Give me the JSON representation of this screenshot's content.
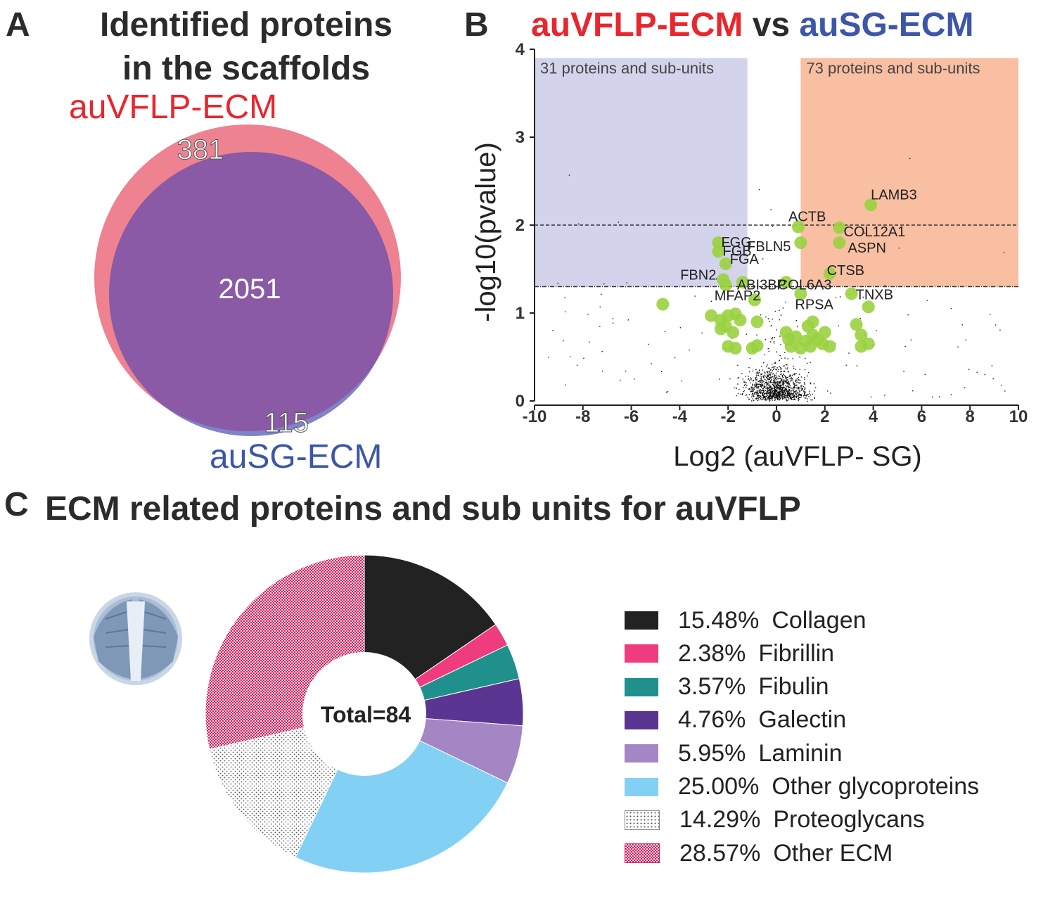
{
  "panels": {
    "a": "A",
    "b": "B",
    "c": "C"
  },
  "colors": {
    "red": "#e8262d",
    "blue": "#3c56a8",
    "venn_red": "#ef8291",
    "venn_purple": "#8a5aa6",
    "venn_blue": "#7f83c9",
    "shade_blue": "#d3d4ec",
    "shade_orange": "#f9bfa2",
    "green_dot": "#9ad13f"
  },
  "venn": {
    "title_line1": "Identified proteins",
    "title_line2": "in the scaffolds",
    "set_a_label": "auVFLP-ECM",
    "set_b_label": "auSG-ECM",
    "only_a": "381",
    "both": "2051",
    "only_b": "115"
  },
  "volcano": {
    "title_a": "auVFLP-ECM",
    "title_vs": "vs",
    "title_b": "auSG-ECM",
    "left_region_text": "31 proteins and sub-units",
    "right_region_text": "73 proteins and sub-units"
  },
  "chart_data": [
    {
      "type": "scatter",
      "title": "auVFLP-ECM vs auSG-ECM",
      "xlabel": "Log2  (auVFLP- SG)",
      "ylabel": "-log10(pvalue)",
      "xlim": [
        -10,
        10
      ],
      "ylim": [
        0,
        4
      ],
      "xticks": [
        "-10",
        "-8",
        "-6",
        "-4",
        "-2",
        "0",
        "2",
        "4",
        "6",
        "8",
        "10"
      ],
      "yticks": [
        "0",
        "1",
        "2",
        "3",
        "4"
      ],
      "thresholds": {
        "pvalue_line": 1.3,
        "upper_line": 2.0,
        "fold_low": -1.2,
        "fold_high": 1.0
      },
      "regions": [
        {
          "name": "left",
          "x": [
            -10,
            -1.2
          ],
          "y": [
            1.3,
            3.9
          ],
          "label": "31 proteins and sub-units"
        },
        {
          "name": "right",
          "x": [
            1.0,
            10
          ],
          "y": [
            1.3,
            3.9
          ],
          "label": "73 proteins and sub-units"
        }
      ],
      "labeled_points": [
        {
          "label": "LAMB3",
          "x": 3.9,
          "y": 2.23
        },
        {
          "label": "ACTB",
          "x": 0.9,
          "y": 1.98
        },
        {
          "label": "COL12A1",
          "x": 2.6,
          "y": 1.97
        },
        {
          "label": "FGG",
          "x": -2.4,
          "y": 1.8
        },
        {
          "label": "FBLN5",
          "x": 1.0,
          "y": 1.8
        },
        {
          "label": "ASPN",
          "x": 2.6,
          "y": 1.8
        },
        {
          "label": "FGB",
          "x": -2.4,
          "y": 1.7
        },
        {
          "label": "FGA",
          "x": -2.1,
          "y": 1.56
        },
        {
          "label": "CTSB",
          "x": 2.2,
          "y": 1.45
        },
        {
          "label": "FBN2",
          "x": -2.2,
          "y": 1.38
        },
        {
          "label": "ABI3BP",
          "x": -1.4,
          "y": 1.35
        },
        {
          "label": "COL6A3",
          "x": 0.4,
          "y": 1.35
        },
        {
          "label": "MFAP2",
          "x": -2.1,
          "y": 1.32
        },
        {
          "label": "RPSA",
          "x": 1.0,
          "y": 1.22
        },
        {
          "label": "TNXB",
          "x": 3.1,
          "y": 1.22
        }
      ],
      "other_ecm_points": [
        [
          -4.7,
          1.1
        ],
        [
          -2.7,
          0.97
        ],
        [
          -2.3,
          0.92
        ],
        [
          -2.0,
          0.97
        ],
        [
          -1.7,
          0.99
        ],
        [
          -2.1,
          0.85
        ],
        [
          -1.8,
          0.78
        ],
        [
          -2.3,
          0.82
        ],
        [
          -1.5,
          0.92
        ],
        [
          -0.8,
          0.9
        ],
        [
          -2.0,
          0.62
        ],
        [
          -1.7,
          0.6
        ],
        [
          -1.0,
          0.6
        ],
        [
          -0.8,
          0.63
        ],
        [
          -0.9,
          1.15
        ],
        [
          0.4,
          0.78
        ],
        [
          0.5,
          0.7
        ],
        [
          0.8,
          0.73
        ],
        [
          0.6,
          0.62
        ],
        [
          1.0,
          0.6
        ],
        [
          1.3,
          0.85
        ],
        [
          1.5,
          0.9
        ],
        [
          1.5,
          0.75
        ],
        [
          1.7,
          0.7
        ],
        [
          1.9,
          0.65
        ],
        [
          2.2,
          0.62
        ],
        [
          1.4,
          0.62
        ],
        [
          3.3,
          0.87
        ],
        [
          3.8,
          1.07
        ],
        [
          3.5,
          0.75
        ],
        [
          3.5,
          0.62
        ],
        [
          3.8,
          0.65
        ],
        [
          1.2,
          0.68
        ],
        [
          2.0,
          0.78
        ]
      ]
    },
    {
      "type": "pie",
      "title": "ECM related proteins and sub units for auVFLP",
      "center_label": "Total=84",
      "slices": [
        {
          "name": "Collagen",
          "percent": 15.48,
          "label": "15.48%",
          "color": "#222222",
          "pattern": "solid"
        },
        {
          "name": "Fibrillin",
          "percent": 2.38,
          "label": "2.38%",
          "color": "#ee3c7e",
          "pattern": "solid"
        },
        {
          "name": "Fibulin",
          "percent": 3.57,
          "label": "3.57%",
          "color": "#20908c",
          "pattern": "solid"
        },
        {
          "name": "Galectin",
          "percent": 4.76,
          "label": "4.76%",
          "color": "#5a3591",
          "pattern": "solid"
        },
        {
          "name": "Laminin",
          "percent": 5.95,
          "label": "5.95%",
          "color": "#a486c4",
          "pattern": "solid"
        },
        {
          "name": "Other glycoproteins",
          "percent": 25.0,
          "label": "25.00%",
          "color": "#82d1f5",
          "pattern": "solid"
        },
        {
          "name": "Proteoglycans",
          "percent": 14.29,
          "label": "14.29%",
          "color": "#555555",
          "pattern": "dots"
        },
        {
          "name": "Other ECM",
          "percent": 28.57,
          "label": "28.57%",
          "color": "#d81f5c",
          "pattern": "check"
        }
      ]
    }
  ]
}
